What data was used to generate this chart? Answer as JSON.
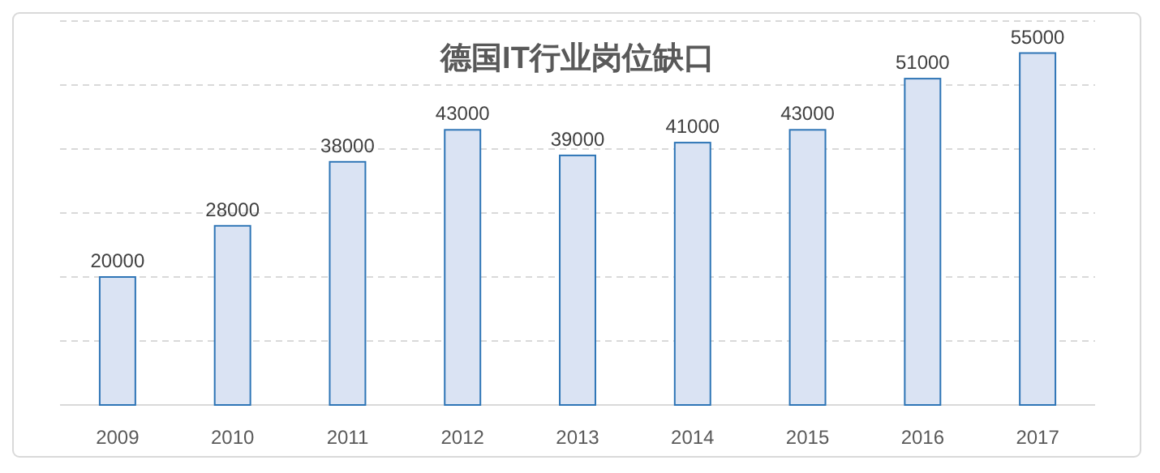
{
  "chart_data": {
    "type": "bar",
    "title": "德国IT行业岗位缺口",
    "categories": [
      "2009",
      "2010",
      "2011",
      "2012",
      "2013",
      "2014",
      "2015",
      "2016",
      "2017"
    ],
    "values": [
      20000,
      28000,
      38000,
      43000,
      39000,
      41000,
      43000,
      51000,
      55000
    ],
    "color": "#dae3f3",
    "ylim": [
      0,
      60000
    ],
    "yticks": [
      {
        "value": 0,
        "label": null
      },
      {
        "value": 10000,
        "label": null
      },
      {
        "value": 20000,
        "label": null
      },
      {
        "value": 30000,
        "label": null
      },
      {
        "value": 40000,
        "label": null
      },
      {
        "value": 50000,
        "label": null
      },
      {
        "value": 60000,
        "label": null
      }
    ],
    "grid": "y",
    "data_labels": true,
    "tick_labels": "x"
  }
}
